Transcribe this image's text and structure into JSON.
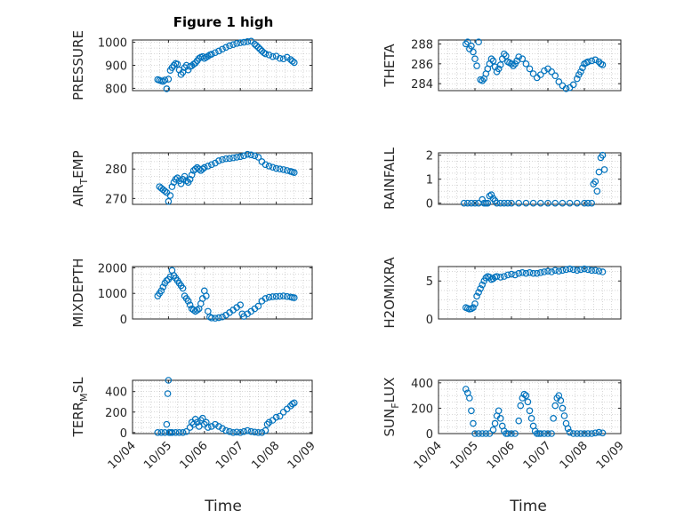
{
  "figure": {
    "title": "Figure 1 high",
    "xlabel": "Time",
    "xticks": [
      "10/04",
      "10/05",
      "10/06",
      "10/07",
      "10/08",
      "10/09"
    ]
  },
  "colors": {
    "marker": "#0072BD",
    "axis": "#262626",
    "grid": "#b0b0b0"
  },
  "chart_data": [
    {
      "type": "scatter",
      "name": "PRESSURE",
      "ylabel_main": "PRESSURE",
      "ylabel_sub": "",
      "ylabel_tail": "",
      "ylim": [
        790,
        1010
      ],
      "yticks": [
        800,
        900,
        1000
      ],
      "ytick_labels": [
        "800",
        "900",
        "1000"
      ],
      "x": [
        0.7,
        0.75,
        0.8,
        0.85,
        0.9,
        0.95,
        1.0,
        1.05,
        1.1,
        1.15,
        1.2,
        1.25,
        1.3,
        1.35,
        1.4,
        1.45,
        1.5,
        1.55,
        1.6,
        1.65,
        1.7,
        1.75,
        1.8,
        1.85,
        1.9,
        1.95,
        2.0,
        2.05,
        2.1,
        2.15,
        2.2,
        2.3,
        2.4,
        2.5,
        2.6,
        2.7,
        2.8,
        2.9,
        3.0,
        3.1,
        3.2,
        3.3,
        3.4,
        3.45,
        3.5,
        3.55,
        3.6,
        3.65,
        3.7,
        3.8,
        3.9,
        4.0,
        4.1,
        4.2,
        4.3,
        4.4,
        4.45,
        4.5
      ],
      "y": [
        838,
        835,
        832,
        830,
        836,
        798,
        840,
        878,
        890,
        900,
        908,
        905,
        880,
        860,
        870,
        890,
        900,
        880,
        895,
        898,
        905,
        910,
        920,
        930,
        935,
        938,
        930,
        935,
        940,
        945,
        948,
        955,
        962,
        970,
        978,
        985,
        990,
        995,
        998,
        1000,
        1003,
        1005,
        992,
        985,
        978,
        970,
        962,
        955,
        950,
        945,
        938,
        940,
        930,
        928,
        935,
        925,
        918,
        912
      ]
    },
    {
      "type": "scatter",
      "name": "THETA",
      "ylabel_main": "THETA",
      "ylabel_sub": "",
      "ylabel_tail": "",
      "ylim": [
        283.3,
        288.4
      ],
      "yticks": [
        284,
        286,
        288
      ],
      "ytick_labels": [
        "284",
        "286",
        "288"
      ],
      "x": [
        0.75,
        0.8,
        0.85,
        0.9,
        0.95,
        1.0,
        1.05,
        1.1,
        1.15,
        1.2,
        1.25,
        1.3,
        1.35,
        1.4,
        1.45,
        1.5,
        1.55,
        1.6,
        1.65,
        1.7,
        1.75,
        1.8,
        1.85,
        1.9,
        1.95,
        2.0,
        2.05,
        2.1,
        2.15,
        2.2,
        2.3,
        2.4,
        2.5,
        2.6,
        2.7,
        2.8,
        2.9,
        3.0,
        3.1,
        3.2,
        3.3,
        3.4,
        3.5,
        3.6,
        3.7,
        3.8,
        3.85,
        3.9,
        3.95,
        4.0,
        4.05,
        4.1,
        4.2,
        4.3,
        4.4,
        4.45,
        4.5
      ],
      "y": [
        288.0,
        288.2,
        287.5,
        287.8,
        287.2,
        286.5,
        285.8,
        288.2,
        284.4,
        284.3,
        284.5,
        285.0,
        285.5,
        286.0,
        286.5,
        286.3,
        285.7,
        285.2,
        285.5,
        285.9,
        286.5,
        287.0,
        286.8,
        286.2,
        286.1,
        286.0,
        285.8,
        286.0,
        286.3,
        286.7,
        286.5,
        286.0,
        285.5,
        285.0,
        284.6,
        284.9,
        285.3,
        285.5,
        285.2,
        284.8,
        284.2,
        283.8,
        283.5,
        283.6,
        283.9,
        284.5,
        284.9,
        285.2,
        285.6,
        286.0,
        286.1,
        286.2,
        286.3,
        286.4,
        286.2,
        286.0,
        285.9
      ]
    },
    {
      "type": "scatter",
      "name": "AIR_TEMP",
      "ylabel_main": "AIR",
      "ylabel_sub": "T",
      "ylabel_tail": "EMP",
      "ylim": [
        268,
        285.5
      ],
      "yticks": [
        270,
        280
      ],
      "ytick_labels": [
        "270",
        "280"
      ],
      "x": [
        0.75,
        0.8,
        0.85,
        0.9,
        0.95,
        1.0,
        1.05,
        1.1,
        1.15,
        1.2,
        1.25,
        1.3,
        1.35,
        1.4,
        1.45,
        1.5,
        1.55,
        1.6,
        1.65,
        1.7,
        1.75,
        1.8,
        1.85,
        1.9,
        1.95,
        2.0,
        2.1,
        2.2,
        2.3,
        2.4,
        2.5,
        2.6,
        2.7,
        2.8,
        2.9,
        3.0,
        3.1,
        3.2,
        3.3,
        3.4,
        3.5,
        3.6,
        3.7,
        3.8,
        3.9,
        4.0,
        4.1,
        4.2,
        4.3,
        4.4,
        4.45,
        4.5
      ],
      "y": [
        274.0,
        273.5,
        273.0,
        272.5,
        272.0,
        269.0,
        271.0,
        274.0,
        275.5,
        276.5,
        277.0,
        276.0,
        275.0,
        276.5,
        277.5,
        276.0,
        275.5,
        276.5,
        278.0,
        279.5,
        280.0,
        280.5,
        280.0,
        279.5,
        280.0,
        280.5,
        281.0,
        281.5,
        282.0,
        282.8,
        283.2,
        283.5,
        283.6,
        283.8,
        284.0,
        284.2,
        284.5,
        285.0,
        284.8,
        284.5,
        284.0,
        282.5,
        281.5,
        281.0,
        280.6,
        280.2,
        280.0,
        279.8,
        279.5,
        279.2,
        279.0,
        278.8
      ]
    },
    {
      "type": "scatter",
      "name": "RAINFALL",
      "ylabel_main": "RAINFALL",
      "ylabel_sub": "",
      "ylabel_tail": "",
      "ylim": [
        -0.05,
        2.1
      ],
      "yticks": [
        0,
        1,
        2
      ],
      "ytick_labels": [
        "0",
        "1",
        "2"
      ],
      "x": [
        0.7,
        0.8,
        0.9,
        1.0,
        1.1,
        1.2,
        1.25,
        1.3,
        1.35,
        1.4,
        1.45,
        1.5,
        1.55,
        1.6,
        1.7,
        1.8,
        1.9,
        2.0,
        2.2,
        2.4,
        2.6,
        2.8,
        3.0,
        3.2,
        3.4,
        3.6,
        3.8,
        4.0,
        4.1,
        4.2,
        4.25,
        4.3,
        4.35,
        4.4,
        4.45,
        4.5,
        4.55
      ],
      "y": [
        0,
        0,
        0,
        0,
        0,
        0.15,
        0,
        0,
        0,
        0.3,
        0.35,
        0.2,
        0.1,
        0,
        0,
        0,
        0,
        0,
        0,
        0,
        0,
        0,
        0,
        0,
        0,
        0,
        0,
        0,
        0,
        0,
        0.8,
        0.9,
        0.5,
        1.3,
        1.9,
        2.0,
        1.4
      ]
    },
    {
      "type": "scatter",
      "name": "MIXDEPTH",
      "ylabel_main": "MIXDEPTH",
      "ylabel_sub": "",
      "ylabel_tail": "",
      "ylim": [
        0,
        2050
      ],
      "yticks": [
        0,
        1000,
        2000
      ],
      "ytick_labels": [
        "0",
        "1000",
        "2000"
      ],
      "x": [
        0.7,
        0.75,
        0.8,
        0.85,
        0.9,
        0.95,
        1.0,
        1.05,
        1.1,
        1.15,
        1.2,
        1.25,
        1.3,
        1.35,
        1.4,
        1.45,
        1.5,
        1.55,
        1.6,
        1.65,
        1.7,
        1.75,
        1.8,
        1.85,
        1.9,
        1.95,
        2.0,
        2.05,
        2.1,
        2.15,
        2.2,
        2.3,
        2.4,
        2.5,
        2.6,
        2.7,
        2.8,
        2.9,
        3.0,
        3.05,
        3.1,
        3.2,
        3.3,
        3.4,
        3.5,
        3.6,
        3.7,
        3.8,
        3.9,
        4.0,
        4.1,
        4.2,
        4.3,
        4.4,
        4.45,
        4.5
      ],
      "y": [
        900,
        1000,
        1100,
        1250,
        1400,
        1500,
        1550,
        1650,
        1900,
        1700,
        1600,
        1500,
        1400,
        1300,
        1200,
        900,
        800,
        700,
        550,
        400,
        350,
        300,
        350,
        400,
        600,
        800,
        1100,
        900,
        300,
        80,
        40,
        30,
        50,
        80,
        150,
        250,
        350,
        450,
        550,
        200,
        100,
        200,
        300,
        400,
        500,
        700,
        800,
        850,
        870,
        880,
        890,
        900,
        880,
        860,
        840,
        830
      ]
    },
    {
      "type": "scatter",
      "name": "H2OMIXRA",
      "ylabel_main": "H2OMIXRA",
      "ylabel_sub": "",
      "ylabel_tail": "",
      "ylim": [
        0,
        6.9
      ],
      "yticks": [
        0,
        5
      ],
      "ytick_labels": [
        "0",
        "5"
      ],
      "x": [
        0.75,
        0.8,
        0.85,
        0.9,
        0.95,
        1.0,
        1.05,
        1.1,
        1.15,
        1.2,
        1.25,
        1.3,
        1.35,
        1.4,
        1.45,
        1.5,
        1.55,
        1.6,
        1.7,
        1.8,
        1.9,
        2.0,
        2.1,
        2.2,
        2.3,
        2.4,
        2.5,
        2.6,
        2.7,
        2.8,
        2.9,
        3.0,
        3.1,
        3.2,
        3.3,
        3.4,
        3.5,
        3.6,
        3.7,
        3.8,
        3.9,
        4.0,
        4.1,
        4.2,
        4.3,
        4.4,
        4.5
      ],
      "y": [
        1.5,
        1.4,
        1.3,
        1.35,
        1.5,
        2.0,
        3.0,
        3.5,
        4.0,
        4.5,
        5.0,
        5.4,
        5.6,
        5.5,
        5.2,
        5.3,
        5.5,
        5.6,
        5.5,
        5.6,
        5.8,
        5.9,
        5.8,
        6.0,
        6.1,
        6.0,
        6.1,
        6.0,
        6.0,
        6.1,
        6.2,
        6.3,
        6.2,
        6.4,
        6.3,
        6.4,
        6.5,
        6.6,
        6.5,
        6.4,
        6.5,
        6.6,
        6.5,
        6.4,
        6.4,
        6.3,
        6.2
      ]
    },
    {
      "type": "scatter",
      "name": "TERR_MSL",
      "ylabel_main": "TERR",
      "ylabel_sub": "M",
      "ylabel_tail": "SL",
      "ylim": [
        -10,
        510
      ],
      "yticks": [
        0,
        200,
        400
      ],
      "ytick_labels": [
        "0",
        "200",
        "400"
      ],
      "x": [
        0.7,
        0.8,
        0.9,
        0.95,
        0.98,
        1.0,
        1.02,
        1.05,
        1.1,
        1.2,
        1.3,
        1.4,
        1.5,
        1.6,
        1.65,
        1.7,
        1.75,
        1.8,
        1.85,
        1.9,
        1.95,
        2.0,
        2.05,
        2.1,
        2.2,
        2.3,
        2.4,
        2.5,
        2.6,
        2.7,
        2.8,
        2.9,
        3.0,
        3.1,
        3.2,
        3.3,
        3.4,
        3.5,
        3.6,
        3.7,
        3.75,
        3.8,
        3.9,
        4.0,
        4.1,
        4.2,
        4.3,
        4.4,
        4.45,
        4.5
      ],
      "y": [
        0,
        0,
        0,
        80,
        380,
        510,
        0,
        0,
        0,
        0,
        0,
        0,
        10,
        50,
        100,
        80,
        130,
        100,
        60,
        120,
        140,
        80,
        100,
        50,
        60,
        80,
        60,
        40,
        20,
        10,
        0,
        5,
        0,
        10,
        20,
        10,
        5,
        0,
        0,
        20,
        80,
        100,
        120,
        150,
        160,
        200,
        230,
        260,
        280,
        290
      ]
    },
    {
      "type": "scatter",
      "name": "SUN_FLUX",
      "ylabel_main": "SUN",
      "ylabel_sub": "F",
      "ylabel_tail": "LUX",
      "ylim": [
        0,
        420
      ],
      "yticks": [
        0,
        200,
        400
      ],
      "ytick_labels": [
        "0",
        "200",
        "400"
      ],
      "x": [
        0.75,
        0.8,
        0.85,
        0.9,
        0.95,
        1.0,
        1.1,
        1.2,
        1.3,
        1.4,
        1.5,
        1.55,
        1.6,
        1.65,
        1.7,
        1.75,
        1.8,
        1.85,
        1.9,
        2.0,
        2.1,
        2.2,
        2.25,
        2.3,
        2.35,
        2.4,
        2.45,
        2.5,
        2.55,
        2.6,
        2.65,
        2.7,
        2.75,
        2.8,
        2.9,
        3.0,
        3.1,
        3.15,
        3.2,
        3.25,
        3.3,
        3.35,
        3.4,
        3.45,
        3.5,
        3.55,
        3.6,
        3.7,
        3.8,
        3.9,
        4.0,
        4.1,
        4.2,
        4.3,
        4.4,
        4.5
      ],
      "y": [
        350,
        320,
        280,
        180,
        80,
        0,
        0,
        0,
        0,
        0,
        30,
        80,
        140,
        180,
        120,
        60,
        20,
        0,
        0,
        0,
        0,
        100,
        220,
        280,
        310,
        300,
        250,
        180,
        120,
        60,
        20,
        0,
        0,
        0,
        0,
        0,
        0,
        120,
        220,
        280,
        300,
        260,
        200,
        140,
        80,
        40,
        10,
        0,
        0,
        0,
        0,
        0,
        0,
        5,
        10,
        5
      ]
    }
  ]
}
